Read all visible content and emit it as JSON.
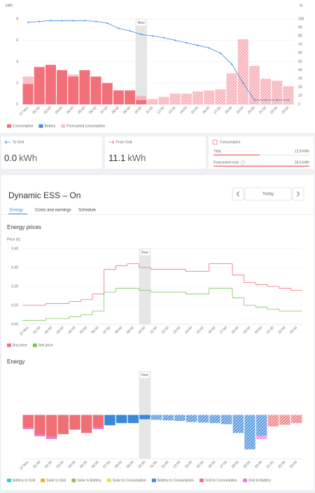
{
  "chart_data": [
    {
      "type": "bar",
      "ylabel": "kWh",
      "y2label": "%",
      "categories": [
        "27 Nov",
        "01:00",
        "02:00",
        "03:00",
        "04:00",
        "05:00",
        "06:00",
        "07:00",
        "08:00",
        "09:00",
        "10:00",
        "11:00",
        "12:00",
        "13:00",
        "14:00",
        "15:00",
        "16:00",
        "17:00",
        "18:00",
        "19:00",
        "20:00",
        "21:00",
        "22:00",
        "23:00"
      ],
      "series": [
        {
          "name": "Consumption",
          "color": "#f2707a",
          "values": [
            1.9,
            3.5,
            3.7,
            3.2,
            2.6,
            3.2,
            2.6,
            2.0,
            1.3,
            1.3,
            0.4,
            null,
            null,
            null,
            null,
            null,
            null,
            null,
            null,
            null,
            null,
            null,
            null,
            null
          ]
        },
        {
          "name": "Battery",
          "color": "#3b8ad9",
          "type": "line",
          "axis": "y2",
          "values": [
            96,
            97,
            98,
            98,
            98,
            98,
            97,
            95,
            89,
            86,
            82,
            80,
            78,
            75,
            72,
            69,
            66,
            60,
            47,
            25,
            5,
            5,
            5,
            5
          ]
        },
        {
          "name": "Forecasted consumption",
          "color": "#f6a0a8",
          "hatch": true,
          "values": [
            2.6,
            3.5,
            3.7,
            3.2,
            2.8,
            3.2,
            2.6,
            2.0,
            1.3,
            1.3,
            0.8,
            0.5,
            0.7,
            1.0,
            1.0,
            1.2,
            1.3,
            1.4,
            2.9,
            6.1,
            3.6,
            2.4,
            2.2,
            1.7
          ]
        }
      ],
      "draw_order": [
        2,
        0,
        1
      ],
      "ylim": [
        0,
        8
      ],
      "yticks": [
        0,
        2,
        4,
        6,
        8
      ],
      "y2lim": [
        0,
        100
      ],
      "y2ticks": [
        0,
        10,
        20,
        30,
        40,
        50,
        60,
        70,
        80,
        90,
        100
      ],
      "grid": true,
      "annotation": {
        "text": "Now",
        "x": "10:00"
      }
    },
    {
      "type": "line",
      "step": true,
      "title": "Energy prices",
      "ylabel": "Price (€)",
      "categories": [
        "27 Nov",
        "01:00",
        "02:00",
        "03:00",
        "04:00",
        "05:00",
        "06:00",
        "07:00",
        "08:00",
        "09:00",
        "10:00",
        "11:00",
        "12:00",
        "13:00",
        "14:00",
        "15:00",
        "16:00",
        "17:00",
        "18:00",
        "19:00",
        "20:00",
        "21:00",
        "22:00",
        "23:00"
      ],
      "series": [
        {
          "name": "Buy price",
          "color": "#f07078",
          "values": [
            0.1,
            0.1,
            0.11,
            0.11,
            0.12,
            0.13,
            0.16,
            0.29,
            0.31,
            0.32,
            0.3,
            0.29,
            0.29,
            0.29,
            0.28,
            0.28,
            0.32,
            0.32,
            0.26,
            0.22,
            0.21,
            0.2,
            0.19,
            0.18
          ]
        },
        {
          "name": "Sell price",
          "color": "#7dc35b",
          "values": [
            0.02,
            0.02,
            0.03,
            0.03,
            0.04,
            0.05,
            0.07,
            0.17,
            0.19,
            0.19,
            0.18,
            0.17,
            0.17,
            0.17,
            0.16,
            0.16,
            0.19,
            0.19,
            0.14,
            0.1,
            0.09,
            0.08,
            0.07,
            0.07
          ]
        }
      ],
      "ylim": [
        0,
        0.4
      ],
      "yticks": [
        {
          "value": 0,
          "label": "0.00"
        },
        {
          "value": 0.1,
          "label": "0.10"
        },
        {
          "value": 0.2,
          "label": "0.20"
        },
        {
          "value": 0.3,
          "label": "0.30"
        },
        {
          "value": 0.4,
          "label": "0.40"
        }
      ],
      "grid": true,
      "annotation": {
        "text": "Now",
        "x": "10:00"
      }
    },
    {
      "type": "bar",
      "stacked": true,
      "hatch_after_now": true,
      "title": "Energy",
      "categories": [
        "27 Nov",
        "01:00",
        "02:00",
        "03:00",
        "04:00",
        "05:00",
        "06:00",
        "07:00",
        "08:00",
        "09:00",
        "10:00",
        "11:00",
        "12:00",
        "13:00",
        "14:00",
        "15:00",
        "16:00",
        "17:00",
        "18:00",
        "19:00",
        "20:00",
        "21:00",
        "22:00",
        "23:00"
      ],
      "series": [
        {
          "name": "Battery to Grid",
          "color": "#3ec1d3",
          "values": [
            0,
            0,
            0,
            0,
            0,
            0,
            0,
            0,
            0,
            0,
            0,
            0,
            0,
            0,
            0,
            0,
            0,
            0,
            0,
            0,
            0,
            0,
            0,
            0
          ]
        },
        {
          "name": "Solar to Grid",
          "color": "#f5a623",
          "values": [
            0,
            0,
            0,
            0,
            0,
            0,
            0,
            0,
            0,
            0,
            0,
            0,
            0,
            0,
            0,
            0,
            0,
            0,
            0,
            0,
            0,
            0,
            0,
            0
          ]
        },
        {
          "name": "Solar to Battery",
          "color": "#8bc34a",
          "values": [
            0,
            0,
            0,
            0,
            0,
            0,
            0,
            0,
            0,
            0,
            0,
            0,
            0,
            0,
            0,
            0,
            0,
            0,
            0,
            0,
            0,
            0,
            0,
            0
          ]
        },
        {
          "name": "Solar to Consumption",
          "color": "#dfe05a",
          "values": [
            0,
            0,
            0,
            0,
            0,
            0,
            0,
            0,
            0,
            0,
            0,
            0,
            0,
            0,
            0,
            0,
            0,
            0,
            0,
            0,
            0,
            0,
            0,
            0
          ]
        },
        {
          "name": "Battery to Consumption",
          "color": "#3b88d8",
          "values": [
            0,
            0,
            0,
            0,
            0,
            0,
            0,
            -1.9,
            -1.5,
            -1.5,
            -0.8,
            -0.9,
            -1.0,
            -1.1,
            -1.3,
            -1.4,
            -1.5,
            -1.7,
            -3.3,
            -6.3,
            -3.8,
            0,
            0,
            0
          ]
        },
        {
          "name": "Grid to Consumption",
          "color": "#f06f74",
          "values": [
            -2.3,
            -3.6,
            -4.0,
            -3.5,
            -2.7,
            -3.3,
            -2.3,
            0,
            0,
            0,
            0,
            0,
            0,
            0,
            0,
            0,
            0,
            0,
            0,
            0,
            0,
            -2.1,
            -1.8,
            -1.5
          ]
        },
        {
          "name": "Grid to Battery",
          "color": "#e879e0",
          "values": [
            -0.3,
            -0.3,
            -0.4,
            0,
            0,
            0,
            -0.3,
            0,
            0,
            0,
            0,
            0,
            0,
            0,
            0,
            0,
            0,
            0,
            0,
            0,
            -0.6,
            0,
            0,
            0
          ]
        }
      ],
      "ylim": [
        -8,
        8
      ],
      "annotation": {
        "text": "Now",
        "x": "10:00"
      }
    }
  ],
  "cards": [
    {
      "title": "To Grid",
      "value": "0.0",
      "unit": "kWh"
    },
    {
      "title": "From Grid",
      "value": "11.1",
      "unit": "kWh"
    }
  ],
  "consumption_card": {
    "title": "Consumption",
    "rows": [
      {
        "label": "Total",
        "value": "12.8 kWh"
      },
      {
        "label": "Forecasted total",
        "value": "26.6 kWh"
      }
    ]
  },
  "dess": {
    "title": "Dynamic ESS – On",
    "date": "Today",
    "tabs": [
      "Energy",
      "Costs and earnings",
      "Schedule"
    ]
  }
}
